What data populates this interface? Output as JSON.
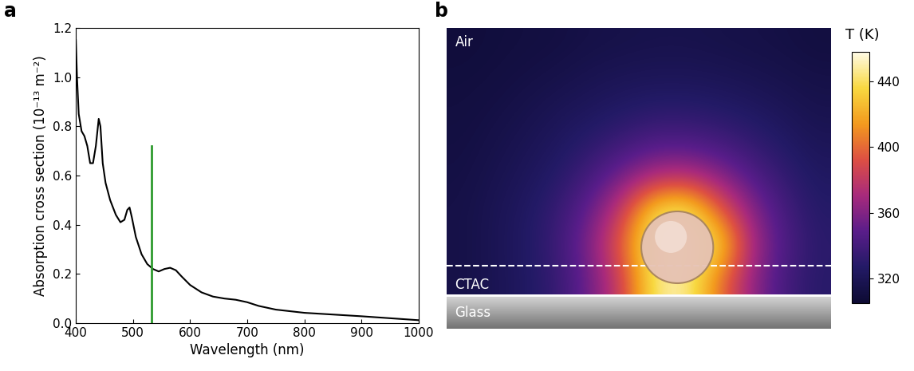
{
  "chart_data": [
    {
      "type": "line",
      "panel_label": "a",
      "x_label": "Wavelength (nm)",
      "y_label": "Absorption cross section (10⁻¹³ m⁻²)",
      "color": "black",
      "x": [
        400,
        402,
        405,
        410,
        415,
        420,
        425,
        430,
        435,
        440,
        443,
        447,
        452,
        460,
        470,
        478,
        485,
        490,
        494,
        498,
        505,
        515,
        525,
        535,
        545,
        555,
        565,
        575,
        585,
        600,
        620,
        640,
        660,
        680,
        700,
        720,
        750,
        800,
        850,
        900,
        950,
        1000
      ],
      "values": [
        1.15,
        1.0,
        0.85,
        0.78,
        0.76,
        0.72,
        0.65,
        0.65,
        0.72,
        0.83,
        0.8,
        0.65,
        0.57,
        0.5,
        0.44,
        0.41,
        0.42,
        0.46,
        0.47,
        0.43,
        0.35,
        0.28,
        0.24,
        0.22,
        0.21,
        0.22,
        0.225,
        0.215,
        0.19,
        0.155,
        0.125,
        0.108,
        0.1,
        0.095,
        0.085,
        0.07,
        0.055,
        0.042,
        0.035,
        0.028,
        0.02,
        0.012
      ],
      "vertical_line": {
        "x": 532,
        "y": [
          0,
          0.72
        ],
        "color": "#2e9a2e"
      },
      "xlim": [
        400,
        1000
      ],
      "xticks": [
        400,
        500,
        600,
        700,
        800,
        900,
        1000
      ],
      "ylim": [
        0,
        1.2
      ],
      "yticks": [
        {
          "value": 0,
          "label": "0.0"
        },
        0.2,
        0.4,
        0.6,
        0.8,
        {
          "value": 1,
          "label": "1.0"
        },
        1.2
      ]
    },
    {
      "type": "heatmap",
      "panel_label": "b",
      "region_labels": [
        "Air",
        "CTAC",
        "Glass"
      ],
      "cells": [
        [
          309,
          310,
          311,
          312,
          314,
          315,
          316,
          316,
          315,
          314,
          313,
          311
        ],
        [
          310,
          311,
          313,
          315,
          318,
          320,
          321,
          321,
          320,
          318,
          316,
          314
        ],
        [
          311,
          313,
          316,
          320,
          323,
          327,
          330,
          330,
          328,
          325,
          321,
          317
        ],
        [
          312,
          315,
          319,
          324,
          331,
          338,
          345,
          345,
          341,
          334,
          327,
          321
        ],
        [
          313,
          317,
          322,
          329,
          341,
          358,
          375,
          378,
          364,
          347,
          334,
          325
        ],
        [
          314,
          319,
          325,
          335,
          353,
          384,
          440,
          448,
          400,
          363,
          341,
          328
        ],
        [
          314,
          319,
          326,
          337,
          360,
          400,
          450,
          450,
          440,
          372,
          345,
          330
        ],
        [
          314,
          319,
          325,
          335,
          355,
          386,
          446,
          450,
          405,
          365,
          341,
          329
        ]
      ],
      "colorbar": {
        "label": "T (K)",
        "range": [
          305,
          458
        ],
        "ticks": [
          320,
          360,
          400,
          440
        ]
      }
    }
  ]
}
